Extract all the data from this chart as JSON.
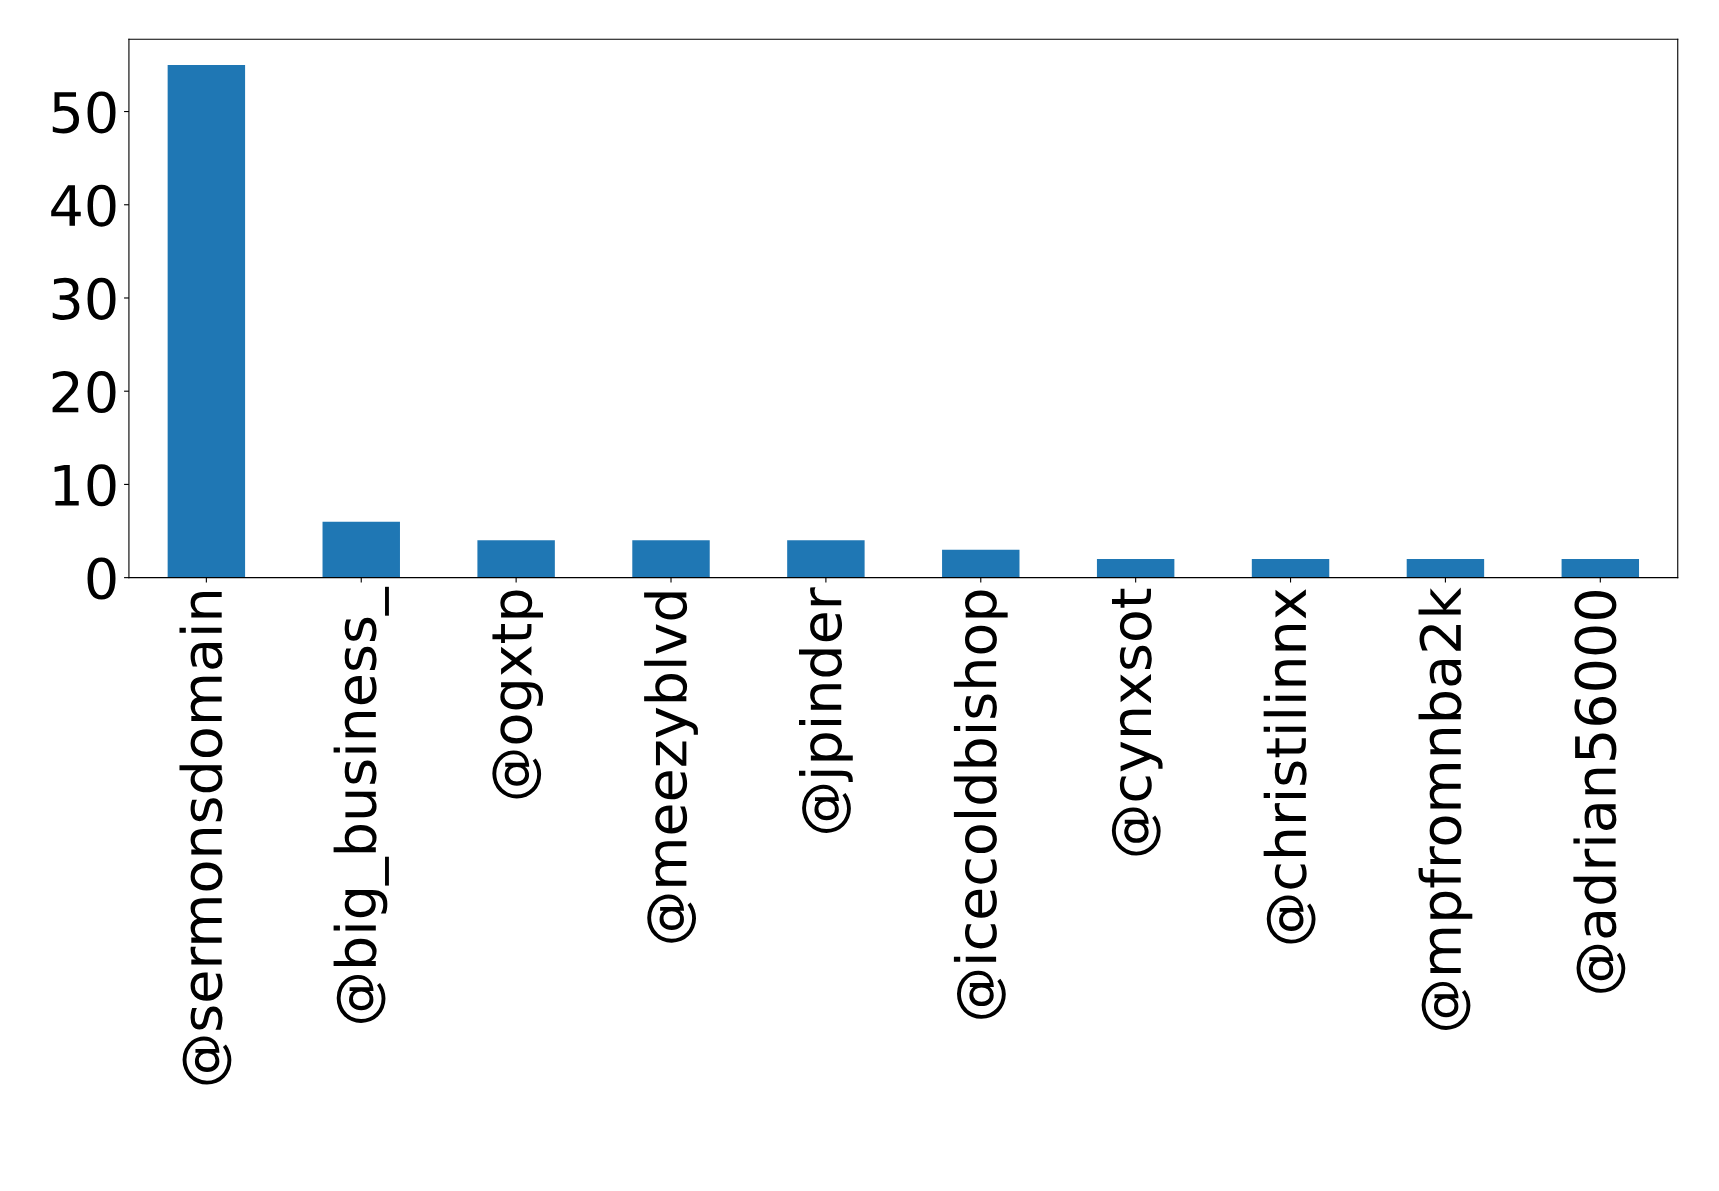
{
  "chart_data": {
    "type": "bar",
    "categories": [
      "@sermonsdomain",
      "@big_business_",
      "@ogxtp",
      "@meezyblvd",
      "@jpinder",
      "@icecoldbishop",
      "@cynxsot",
      "@christilinnx",
      "@mpfromnba2k",
      "@adrian56000"
    ],
    "values": [
      55,
      6,
      4,
      4,
      4,
      3,
      2,
      2,
      2,
      2
    ],
    "color": "#1f77b4",
    "ylim": [
      0,
      57.75
    ],
    "yticks": [
      0,
      10,
      20,
      30,
      40,
      50
    ],
    "grid": false,
    "legend": false
  }
}
